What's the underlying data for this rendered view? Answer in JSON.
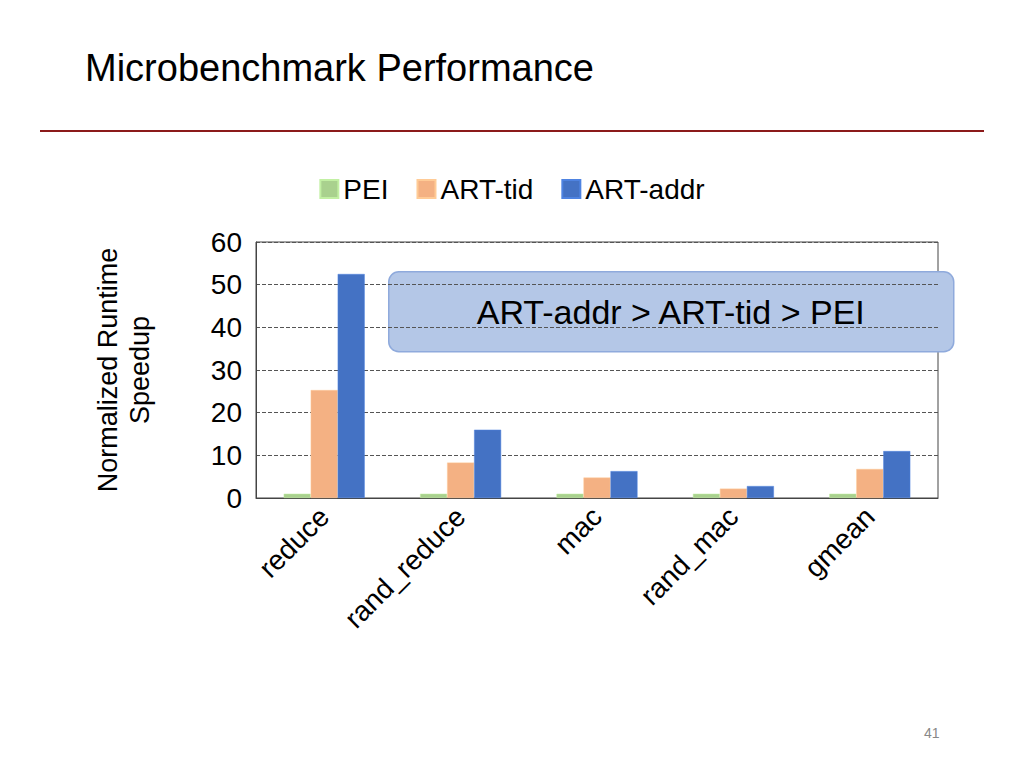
{
  "chart_data": {
    "type": "bar",
    "title": "Microbenchmark Performance",
    "y_label": "Normalized Runtime\nSpeedup",
    "annotations": [
      "ART-addr > ART-tid > PEI"
    ],
    "footer": "41",
    "categories": [
      "reduce",
      "rand_reduce",
      "mac",
      "rand_mac",
      "gmean"
    ],
    "series": [
      {
        "name": "PEI",
        "color": "#a9d18e",
        "values": [
          1,
          1,
          1,
          1,
          1
        ]
      },
      {
        "name": "ART-tid",
        "color": "#f4b183",
        "values": [
          25.3,
          8.3,
          4.8,
          2.2,
          6.8
        ]
      },
      {
        "name": "ART-addr",
        "color": "#4472c4",
        "values": [
          52.5,
          16,
          6.3,
          2.8,
          11
        ]
      }
    ],
    "ylim": [
      0,
      60
    ],
    "yticks": [
      0,
      10,
      20,
      30,
      40,
      50,
      60
    ],
    "grid": true,
    "legend": "top"
  }
}
